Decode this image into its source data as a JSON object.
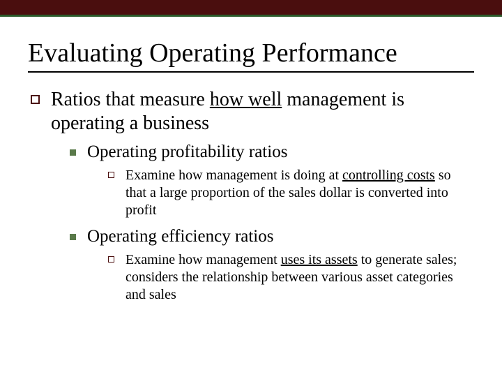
{
  "colors": {
    "top_bar": "#4a0e0e",
    "top_bar_border": "#2a5a2a",
    "bullet_open": "#4a0e0e",
    "bullet_filled": "#5a7a4a",
    "text": "#000000",
    "background": "#ffffff"
  },
  "title": "Evaluating Operating Performance",
  "level1": {
    "pre": "Ratios that measure ",
    "underlined": "how well",
    "post": " management is operating a business"
  },
  "items": [
    {
      "heading": "Operating profitability ratios",
      "detail_pre": "Examine how management is doing at ",
      "detail_underlined": "controlling costs",
      "detail_post": " so that a large proportion of the sales dollar is converted into profit"
    },
    {
      "heading": "Operating efficiency ratios",
      "detail_pre": "Examine how management ",
      "detail_underlined": "uses its assets",
      "detail_post": " to generate sales; considers the relationship between various asset categories and sales"
    }
  ]
}
